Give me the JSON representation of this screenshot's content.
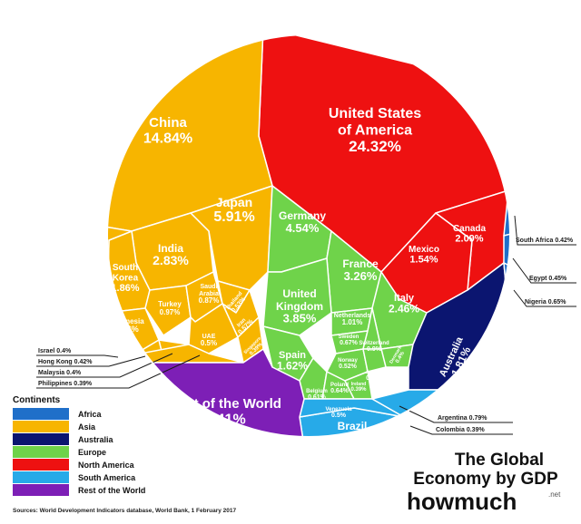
{
  "chart_data": {
    "type": "voronoi-treemap",
    "title_lines": [
      "The Global",
      "Economy by GDP"
    ],
    "brand": "howmuch",
    "brand_suffix": ".net",
    "source": "Sources: World Development Indicators database, World Bank, 1 February 2017",
    "legend_title": "Continents",
    "continents": [
      {
        "name": "Africa",
        "color": "#1f6fc9"
      },
      {
        "name": "Asia",
        "color": "#f7b500"
      },
      {
        "name": "Australia",
        "color": "#0b1570"
      },
      {
        "name": "Europe",
        "color": "#6fd34a"
      },
      {
        "name": "North America",
        "color": "#ee1111"
      },
      {
        "name": "South America",
        "color": "#27aae8"
      },
      {
        "name": "Rest of the World",
        "color": "#7d1fb6"
      }
    ],
    "countries": [
      {
        "name": "United States of America",
        "lines": [
          "United States",
          "of America"
        ],
        "value": "24.32%",
        "continent": "North America"
      },
      {
        "name": "Canada",
        "lines": [
          "Canada"
        ],
        "value": "2.09%",
        "continent": "North America"
      },
      {
        "name": "Mexico",
        "lines": [
          "Mexico"
        ],
        "value": "1.54%",
        "continent": "North America"
      },
      {
        "name": "China",
        "lines": [
          "China"
        ],
        "value": "14.84%",
        "continent": "Asia"
      },
      {
        "name": "Japan",
        "lines": [
          "Japan"
        ],
        "value": "5.91%",
        "continent": "Asia"
      },
      {
        "name": "India",
        "lines": [
          "India"
        ],
        "value": "2.83%",
        "continent": "Asia"
      },
      {
        "name": "South Korea",
        "lines": [
          "South",
          "Korea"
        ],
        "value": "1.86%",
        "continent": "Asia"
      },
      {
        "name": "Russia",
        "lines": [
          "Russia"
        ],
        "value": "1.8%",
        "continent": "Asia"
      },
      {
        "name": "Indonesia",
        "lines": [
          "Indonesia"
        ],
        "value": "1.16%",
        "continent": "Asia"
      },
      {
        "name": "Turkey",
        "lines": [
          "Turkey"
        ],
        "value": "0.97%",
        "continent": "Asia"
      },
      {
        "name": "Saudi Arabia",
        "lines": [
          "Saudi",
          "Arabia"
        ],
        "value": "0.87%",
        "continent": "Asia"
      },
      {
        "name": "Thailand",
        "lines": [
          "Thailand"
        ],
        "value": "0.53%",
        "continent": "Asia"
      },
      {
        "name": "Iran",
        "lines": [
          "Iran"
        ],
        "value": "0.57%",
        "continent": "Asia"
      },
      {
        "name": "UAE",
        "lines": [
          "UAE"
        ],
        "value": "0.5%",
        "continent": "Asia"
      },
      {
        "name": "Singapore",
        "lines": [
          "Singapore"
        ],
        "value": "0.39%",
        "continent": "Asia"
      },
      {
        "name": "Israel",
        "lines": [
          "Israel"
        ],
        "value": "0.4%",
        "continent": "Asia"
      },
      {
        "name": "Hong Kong",
        "lines": [
          "Hong Kong"
        ],
        "value": "0.42%",
        "continent": "Asia"
      },
      {
        "name": "Malaysia",
        "lines": [
          "Malaysia"
        ],
        "value": "0.4%",
        "continent": "Asia"
      },
      {
        "name": "Philippines",
        "lines": [
          "Philippines"
        ],
        "value": "0.39%",
        "continent": "Asia"
      },
      {
        "name": "Germany",
        "lines": [
          "Germany"
        ],
        "value": "4.54%",
        "continent": "Europe"
      },
      {
        "name": "France",
        "lines": [
          "France"
        ],
        "value": "3.26%",
        "continent": "Europe"
      },
      {
        "name": "United Kingdom",
        "lines": [
          "United",
          "Kingdom"
        ],
        "value": "3.85%",
        "continent": "Europe"
      },
      {
        "name": "Italy",
        "lines": [
          "Italy"
        ],
        "value": "2.46%",
        "continent": "Europe"
      },
      {
        "name": "Spain",
        "lines": [
          "Spain"
        ],
        "value": "1.62%",
        "continent": "Europe"
      },
      {
        "name": "Netherlands",
        "lines": [
          "Netherlands"
        ],
        "value": "1.01%",
        "continent": "Europe"
      },
      {
        "name": "Sweden",
        "lines": [
          "Sweden"
        ],
        "value": "0.67%",
        "continent": "Europe"
      },
      {
        "name": "Switzerland",
        "lines": [
          "Switzerland"
        ],
        "value": "0.9%",
        "continent": "Europe"
      },
      {
        "name": "Denmark",
        "lines": [
          "Denmark"
        ],
        "value": "0.4%",
        "continent": "Europe"
      },
      {
        "name": "Norway",
        "lines": [
          "Norway"
        ],
        "value": "0.52%",
        "continent": "Europe"
      },
      {
        "name": "Austria",
        "lines": [
          "Austria"
        ],
        "value": "0.51%",
        "continent": "Europe"
      },
      {
        "name": "Belgium",
        "lines": [
          "Belgium"
        ],
        "value": "0.61%",
        "continent": "Europe"
      },
      {
        "name": "Poland",
        "lines": [
          "Poland"
        ],
        "value": "0.64%",
        "continent": "Europe"
      },
      {
        "name": "Ireland",
        "lines": [
          "Ireland"
        ],
        "value": "0.39%",
        "continent": "Europe"
      },
      {
        "name": "Australia",
        "lines": [
          "Australia"
        ],
        "value": "1.81%",
        "continent": "Australia"
      },
      {
        "name": "Brazil",
        "lines": [
          "Brazil"
        ],
        "value": "2.39%",
        "continent": "South America"
      },
      {
        "name": "Venezuela",
        "lines": [
          "Venezuela"
        ],
        "value": "0.5%",
        "continent": "South America"
      },
      {
        "name": "Argentina",
        "lines": [
          "Argentina"
        ],
        "value": "0.79%",
        "continent": "South America"
      },
      {
        "name": "Colombia",
        "lines": [
          "Colombia"
        ],
        "value": "0.39%",
        "continent": "South America"
      },
      {
        "name": "South Africa",
        "lines": [
          "South Africa"
        ],
        "value": "0.42%",
        "continent": "Africa"
      },
      {
        "name": "Egypt",
        "lines": [
          "Egypt"
        ],
        "value": "0.45%",
        "continent": "Africa"
      },
      {
        "name": "Nigeria",
        "lines": [
          "Nigeria"
        ],
        "value": "0.65%",
        "continent": "Africa"
      },
      {
        "name": "Rest of the World",
        "lines": [
          "Rest of the World"
        ],
        "value": "9.41%",
        "continent": "Rest of the World"
      }
    ]
  }
}
